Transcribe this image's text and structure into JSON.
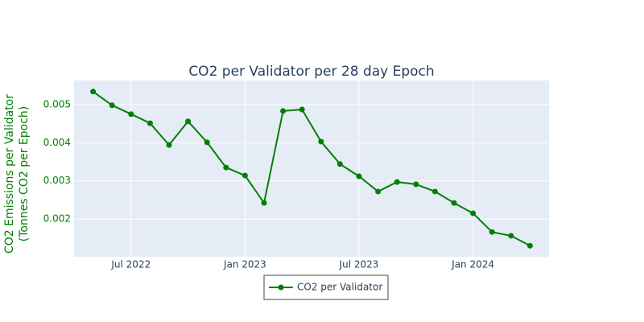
{
  "chart_data": {
    "type": "line",
    "title": "CO2 per Validator per 28 day Epoch",
    "y_axis_title": [
      "CO2 Emissions per Validator",
      "(Tonnes CO2 per Epoch)"
    ],
    "x": [
      "2022-05",
      "2022-06",
      "2022-07",
      "2022-08",
      "2022-09",
      "2022-10",
      "2022-11",
      "2022-12",
      "2023-01",
      "2023-02",
      "2023-03",
      "2023-04",
      "2023-05",
      "2023-06",
      "2023-07",
      "2023-08",
      "2023-09",
      "2023-10",
      "2023-11",
      "2023-12",
      "2024-01",
      "2024-02",
      "2024-03",
      "2024-04"
    ],
    "series": [
      {
        "name": "CO2 per Validator",
        "color": "#008000",
        "values": [
          0.00534,
          0.00498,
          0.00475,
          0.00451,
          0.00394,
          0.00456,
          0.00401,
          0.00335,
          0.00314,
          0.00242,
          0.00483,
          0.00487,
          0.00403,
          0.00344,
          0.00312,
          0.00272,
          0.00297,
          0.00291,
          0.00272,
          0.00242,
          0.00215,
          0.00166,
          0.00156,
          0.0013
        ]
      }
    ],
    "xlim": [
      "2022-04",
      "2024-05"
    ],
    "xticks": [
      {
        "value": "2022-07",
        "label": "Jul 2022"
      },
      {
        "value": "2023-01",
        "label": "Jan 2023"
      },
      {
        "value": "2023-07",
        "label": "Jul 2023"
      },
      {
        "value": "2024-01",
        "label": "Jan 2024"
      }
    ],
    "ylim": [
      0.00101,
      0.00563
    ],
    "yticks": [
      0.002,
      0.003,
      0.004,
      0.005
    ],
    "grid": true,
    "legend": "bottom"
  }
}
